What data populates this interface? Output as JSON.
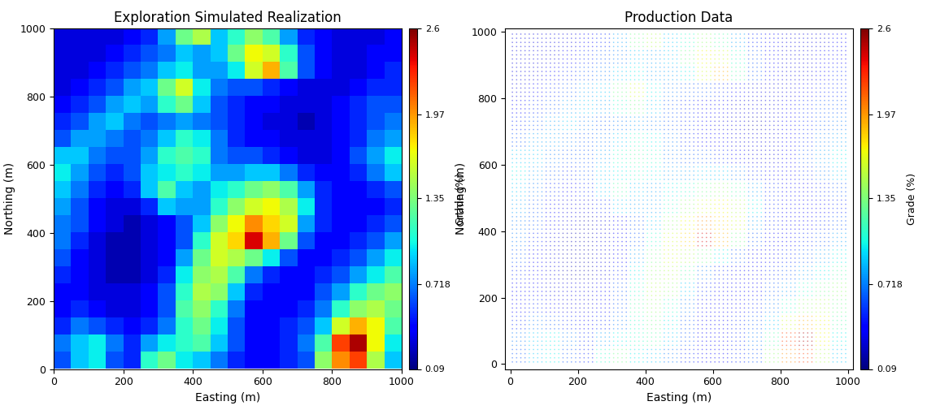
{
  "chart_data": [
    {
      "type": "heatmap",
      "title": "Exploration Simulated Realization",
      "xlabel": "Easting (m)",
      "ylabel": "Northing (m)",
      "xlim": [
        0,
        1000
      ],
      "ylim": [
        0,
        1000
      ],
      "xticks": [
        0,
        200,
        400,
        600,
        800,
        1000
      ],
      "yticks": [
        0,
        200,
        400,
        600,
        800,
        1000
      ],
      "x": [
        25,
        75,
        125,
        175,
        225,
        275,
        325,
        375,
        425,
        475,
        525,
        575,
        625,
        675,
        725,
        775,
        825,
        875,
        925,
        975
      ],
      "y": [
        25,
        75,
        125,
        175,
        225,
        275,
        325,
        375,
        425,
        475,
        525,
        575,
        625,
        675,
        725,
        775,
        825,
        875,
        925,
        975
      ],
      "cells": [
        [
          0.6,
          0.9,
          1.0,
          0.6,
          0.5,
          1.1,
          1.3,
          1.0,
          0.9,
          0.7,
          0.5,
          0.4,
          0.4,
          0.5,
          0.6,
          1.4,
          2.0,
          2.2,
          1.5,
          0.9
        ],
        [
          0.7,
          0.9,
          1.0,
          0.7,
          0.5,
          0.8,
          1.0,
          1.1,
          1.2,
          0.9,
          0.6,
          0.4,
          0.4,
          0.5,
          0.7,
          1.2,
          2.2,
          2.5,
          1.7,
          1.0
        ],
        [
          0.5,
          0.7,
          0.6,
          0.5,
          0.4,
          0.5,
          0.7,
          1.1,
          1.3,
          1.0,
          0.6,
          0.4,
          0.4,
          0.5,
          0.6,
          0.9,
          1.6,
          1.9,
          1.7,
          1.2
        ],
        [
          0.4,
          0.5,
          0.4,
          0.3,
          0.3,
          0.4,
          0.6,
          1.2,
          1.4,
          1.1,
          0.7,
          0.4,
          0.4,
          0.4,
          0.5,
          0.7,
          1.1,
          1.4,
          1.5,
          1.3
        ],
        [
          0.4,
          0.4,
          0.3,
          0.3,
          0.3,
          0.4,
          0.6,
          1.1,
          1.5,
          1.4,
          0.9,
          0.5,
          0.4,
          0.4,
          0.4,
          0.6,
          0.8,
          1.1,
          1.3,
          1.4
        ],
        [
          0.5,
          0.4,
          0.3,
          0.2,
          0.2,
          0.3,
          0.5,
          1.0,
          1.4,
          1.5,
          1.2,
          0.7,
          0.5,
          0.4,
          0.4,
          0.5,
          0.6,
          0.8,
          1.0,
          1.2
        ],
        [
          0.6,
          0.4,
          0.3,
          0.2,
          0.2,
          0.3,
          0.4,
          0.8,
          1.3,
          1.6,
          1.5,
          1.3,
          1.0,
          0.6,
          0.4,
          0.4,
          0.5,
          0.6,
          0.8,
          1.0
        ],
        [
          0.7,
          0.5,
          0.3,
          0.2,
          0.2,
          0.3,
          0.4,
          0.6,
          1.1,
          1.6,
          1.8,
          2.4,
          1.9,
          1.3,
          0.6,
          0.4,
          0.4,
          0.5,
          0.6,
          0.8
        ],
        [
          0.7,
          0.6,
          0.4,
          0.3,
          0.2,
          0.3,
          0.4,
          0.6,
          0.9,
          1.4,
          1.7,
          2.0,
          1.8,
          1.6,
          0.8,
          0.5,
          0.4,
          0.4,
          0.5,
          0.6
        ],
        [
          0.8,
          0.6,
          0.4,
          0.3,
          0.3,
          0.5,
          0.9,
          0.8,
          0.8,
          1.1,
          1.4,
          1.6,
          1.7,
          1.5,
          1.0,
          0.5,
          0.4,
          0.4,
          0.4,
          0.5
        ],
        [
          0.9,
          0.7,
          0.5,
          0.4,
          0.5,
          0.9,
          1.2,
          0.9,
          0.8,
          1.0,
          1.1,
          1.3,
          1.4,
          1.2,
          0.8,
          0.5,
          0.4,
          0.4,
          0.5,
          0.6
        ],
        [
          1.0,
          0.8,
          0.6,
          0.5,
          0.6,
          0.9,
          1.0,
          1.1,
          1.0,
          0.8,
          0.8,
          0.9,
          0.9,
          0.7,
          0.5,
          0.4,
          0.4,
          0.5,
          0.7,
          0.9
        ],
        [
          0.9,
          0.9,
          0.7,
          0.6,
          0.6,
          0.8,
          1.1,
          1.2,
          1.1,
          0.7,
          0.6,
          0.6,
          0.5,
          0.4,
          0.3,
          0.3,
          0.4,
          0.6,
          0.8,
          1.0
        ],
        [
          0.6,
          0.8,
          0.8,
          0.7,
          0.6,
          0.7,
          0.9,
          1.1,
          1.0,
          0.7,
          0.5,
          0.4,
          0.4,
          0.3,
          0.3,
          0.3,
          0.4,
          0.5,
          0.7,
          0.8
        ],
        [
          0.5,
          0.6,
          0.8,
          0.9,
          0.7,
          0.6,
          0.7,
          0.8,
          0.7,
          0.6,
          0.5,
          0.4,
          0.3,
          0.3,
          0.2,
          0.3,
          0.4,
          0.5,
          0.6,
          0.7
        ],
        [
          0.4,
          0.5,
          0.6,
          0.8,
          0.9,
          0.8,
          1.1,
          1.3,
          0.9,
          0.6,
          0.5,
          0.4,
          0.4,
          0.3,
          0.3,
          0.3,
          0.4,
          0.5,
          0.6,
          0.6
        ],
        [
          0.3,
          0.4,
          0.5,
          0.6,
          0.8,
          0.9,
          1.3,
          1.6,
          1.0,
          0.7,
          0.6,
          0.6,
          0.5,
          0.4,
          0.3,
          0.3,
          0.3,
          0.4,
          0.5,
          0.5
        ],
        [
          0.3,
          0.3,
          0.4,
          0.5,
          0.6,
          0.7,
          0.9,
          1.0,
          0.8,
          0.8,
          1.0,
          1.6,
          1.9,
          1.2,
          0.6,
          0.4,
          0.3,
          0.3,
          0.4,
          0.5
        ],
        [
          0.3,
          0.3,
          0.3,
          0.4,
          0.5,
          0.6,
          0.7,
          0.9,
          0.8,
          0.9,
          1.3,
          1.7,
          1.6,
          1.1,
          0.6,
          0.4,
          0.3,
          0.3,
          0.4,
          0.4
        ],
        [
          0.3,
          0.3,
          0.3,
          0.3,
          0.4,
          0.5,
          0.8,
          1.3,
          1.5,
          0.9,
          1.1,
          1.4,
          1.2,
          0.8,
          0.5,
          0.4,
          0.3,
          0.3,
          0.3,
          0.4
        ]
      ],
      "colorbar": {
        "label": "Grade (%)",
        "range": [
          0.09,
          2.6
        ],
        "ticks": [
          0.09,
          0.718,
          1.35,
          1.97,
          2.6
        ]
      }
    },
    {
      "type": "scatter",
      "title": "Production Data",
      "xlabel": "Easting (m)",
      "ylabel": "Northing (m)",
      "xlim": [
        -15,
        1015
      ],
      "ylim": [
        -15,
        1010
      ],
      "xticks": [
        0,
        200,
        400,
        600,
        800,
        1000
      ],
      "yticks": [
        0,
        200,
        400,
        600,
        800,
        1000
      ],
      "x": [
        25,
        75,
        125,
        175,
        225,
        275,
        325,
        375,
        425,
        475,
        525,
        575,
        625,
        675,
        725,
        775,
        825,
        875,
        925,
        975
      ],
      "y": [
        25,
        75,
        125,
        175,
        225,
        275,
        325,
        375,
        425,
        475,
        525,
        575,
        625,
        675,
        725,
        775,
        825,
        875,
        925,
        975
      ],
      "cells": [
        [
          0.6,
          0.9,
          1.0,
          0.6,
          0.5,
          1.1,
          1.3,
          1.0,
          0.9,
          0.7,
          0.5,
          0.4,
          0.4,
          0.5,
          0.6,
          1.4,
          2.0,
          2.2,
          1.5,
          0.9
        ],
        [
          0.7,
          0.9,
          1.0,
          0.7,
          0.5,
          0.8,
          1.0,
          1.1,
          1.2,
          0.9,
          0.6,
          0.4,
          0.4,
          0.5,
          0.7,
          1.2,
          2.2,
          2.5,
          1.7,
          1.0
        ],
        [
          0.5,
          0.7,
          0.6,
          0.5,
          0.4,
          0.5,
          0.7,
          1.1,
          1.3,
          1.0,
          0.6,
          0.4,
          0.4,
          0.5,
          0.6,
          0.9,
          1.6,
          1.9,
          1.7,
          1.2
        ],
        [
          0.4,
          0.5,
          0.4,
          0.3,
          0.3,
          0.4,
          0.6,
          1.2,
          1.4,
          1.1,
          0.7,
          0.4,
          0.4,
          0.4,
          0.5,
          0.7,
          1.1,
          1.4,
          1.5,
          1.3
        ],
        [
          0.4,
          0.4,
          0.3,
          0.3,
          0.3,
          0.4,
          0.6,
          1.1,
          1.5,
          1.4,
          0.9,
          0.5,
          0.4,
          0.4,
          0.4,
          0.6,
          0.8,
          1.1,
          1.3,
          1.4
        ],
        [
          0.5,
          0.4,
          0.3,
          0.2,
          0.2,
          0.3,
          0.5,
          1.0,
          1.4,
          1.5,
          1.2,
          0.7,
          0.5,
          0.4,
          0.4,
          0.5,
          0.6,
          0.8,
          1.0,
          1.2
        ],
        [
          0.6,
          0.4,
          0.3,
          0.2,
          0.2,
          0.3,
          0.4,
          0.8,
          1.3,
          1.6,
          1.5,
          1.3,
          1.0,
          0.6,
          0.4,
          0.4,
          0.5,
          0.6,
          0.8,
          1.0
        ],
        [
          0.7,
          0.5,
          0.3,
          0.2,
          0.2,
          0.3,
          0.4,
          0.6,
          1.1,
          1.6,
          1.8,
          2.4,
          1.9,
          1.3,
          0.6,
          0.4,
          0.4,
          0.5,
          0.6,
          0.8
        ],
        [
          0.7,
          0.6,
          0.4,
          0.3,
          0.2,
          0.3,
          0.4,
          0.6,
          0.9,
          1.4,
          1.7,
          2.0,
          1.8,
          1.6,
          0.8,
          0.5,
          0.4,
          0.4,
          0.5,
          0.6
        ],
        [
          0.8,
          0.6,
          0.4,
          0.3,
          0.3,
          0.5,
          0.9,
          0.8,
          0.8,
          1.1,
          1.4,
          1.6,
          1.7,
          1.5,
          1.0,
          0.5,
          0.4,
          0.4,
          0.4,
          0.5
        ],
        [
          0.9,
          0.7,
          0.5,
          0.4,
          0.5,
          0.9,
          1.2,
          0.9,
          0.8,
          1.0,
          1.1,
          1.3,
          1.4,
          1.2,
          0.8,
          0.5,
          0.4,
          0.4,
          0.5,
          0.6
        ],
        [
          1.0,
          0.8,
          0.6,
          0.5,
          0.6,
          0.9,
          1.0,
          1.1,
          1.0,
          0.8,
          0.8,
          0.9,
          0.9,
          0.7,
          0.5,
          0.4,
          0.4,
          0.5,
          0.7,
          0.9
        ],
        [
          0.9,
          0.9,
          0.7,
          0.6,
          0.6,
          0.8,
          1.1,
          1.2,
          1.1,
          0.7,
          0.6,
          0.6,
          0.5,
          0.4,
          0.3,
          0.3,
          0.4,
          0.6,
          0.8,
          1.0
        ],
        [
          0.6,
          0.8,
          0.8,
          0.7,
          0.6,
          0.7,
          0.9,
          1.1,
          1.0,
          0.7,
          0.5,
          0.4,
          0.4,
          0.3,
          0.3,
          0.3,
          0.4,
          0.5,
          0.7,
          0.8
        ],
        [
          0.5,
          0.6,
          0.8,
          0.9,
          0.7,
          0.6,
          0.7,
          0.8,
          0.7,
          0.6,
          0.5,
          0.4,
          0.3,
          0.3,
          0.2,
          0.3,
          0.4,
          0.5,
          0.6,
          0.7
        ],
        [
          0.4,
          0.5,
          0.6,
          0.8,
          0.9,
          0.8,
          1.1,
          1.3,
          0.9,
          0.6,
          0.5,
          0.4,
          0.4,
          0.3,
          0.3,
          0.3,
          0.4,
          0.5,
          0.6,
          0.6
        ],
        [
          0.3,
          0.4,
          0.5,
          0.6,
          0.8,
          0.9,
          1.3,
          1.6,
          1.0,
          0.7,
          0.6,
          0.6,
          0.5,
          0.4,
          0.3,
          0.3,
          0.3,
          0.4,
          0.5,
          0.5
        ],
        [
          0.3,
          0.3,
          0.4,
          0.5,
          0.6,
          0.7,
          0.9,
          1.0,
          0.8,
          0.8,
          1.0,
          1.6,
          1.9,
          1.2,
          0.6,
          0.4,
          0.3,
          0.3,
          0.4,
          0.5
        ],
        [
          0.3,
          0.3,
          0.3,
          0.4,
          0.5,
          0.6,
          0.7,
          0.9,
          0.8,
          0.9,
          1.3,
          1.7,
          1.6,
          1.1,
          0.6,
          0.4,
          0.3,
          0.3,
          0.4,
          0.4
        ],
        [
          0.3,
          0.3,
          0.3,
          0.3,
          0.4,
          0.5,
          0.8,
          1.3,
          1.5,
          0.9,
          1.1,
          1.4,
          1.2,
          0.8,
          0.5,
          0.4,
          0.3,
          0.3,
          0.3,
          0.4
        ]
      ],
      "colorbar": {
        "label": "Grade (%)",
        "range": [
          0.09,
          2.6
        ],
        "ticks": [
          0.09,
          0.718,
          1.35,
          1.97,
          2.6
        ]
      }
    }
  ]
}
